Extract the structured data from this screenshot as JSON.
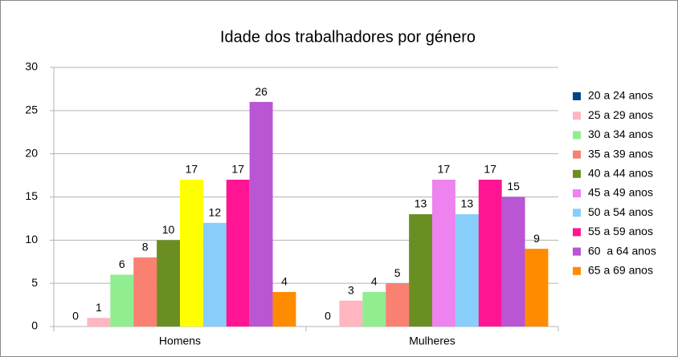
{
  "chart_data": {
    "type": "bar",
    "title": "Idade dos trabalhadores por género",
    "categories": [
      "Homens",
      "Mulheres"
    ],
    "series": [
      {
        "name": "20 a 24 anos",
        "color": "#004586",
        "values": [
          0,
          0
        ]
      },
      {
        "name": "25 a 29 anos",
        "color": "#ffb6c1",
        "values": [
          1,
          3
        ]
      },
      {
        "name": "30 a 34 anos",
        "color": "#90ee90",
        "values": [
          6,
          4
        ]
      },
      {
        "name": "35 a 39 anos",
        "color": "#fa8072",
        "values": [
          8,
          5
        ]
      },
      {
        "name": "40 a 44 anos",
        "color": "#6b8e23",
        "values": [
          10,
          13
        ]
      },
      {
        "name": "45 a 49 anos",
        "color": "#ee82ee",
        "values": [
          17,
          17
        ],
        "value_colors": [
          "#ffff00",
          "#ee82ee"
        ]
      },
      {
        "name": "50 a 54 anos",
        "color": "#87cefa",
        "values": [
          12,
          13
        ]
      },
      {
        "name": "55 a 59 anos",
        "color": "#ff1493",
        "values": [
          17,
          17
        ]
      },
      {
        "name": "60  a 64 anos",
        "color": "#ba55d3",
        "values": [
          26,
          15
        ]
      },
      {
        "name": "65 a 69 anos",
        "color": "#ff8c00",
        "values": [
          4,
          9
        ]
      }
    ],
    "ylim": [
      0,
      30
    ],
    "yticks": [
      0,
      5,
      10,
      15,
      20,
      25,
      30
    ],
    "grid": true,
    "legend": "right"
  }
}
